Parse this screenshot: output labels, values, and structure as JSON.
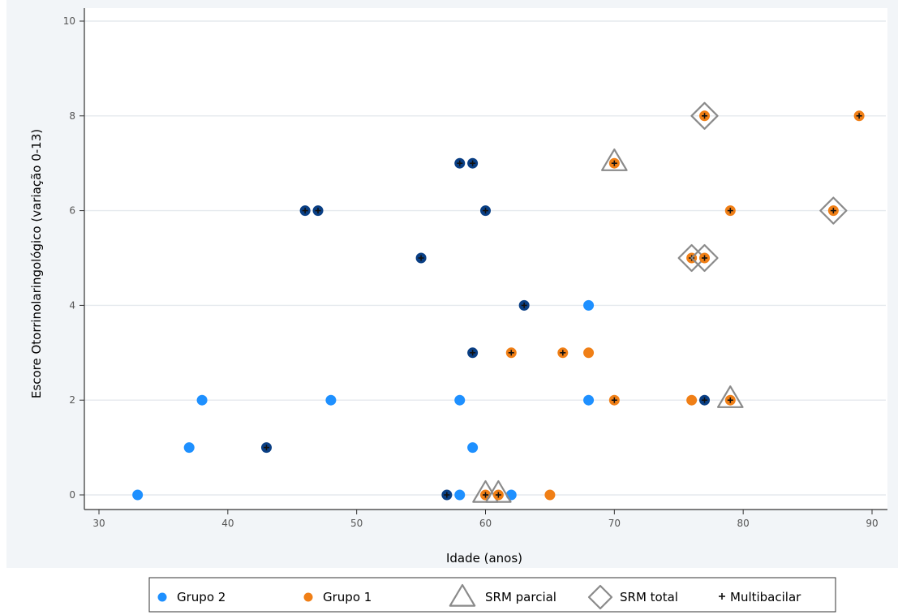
{
  "colors": {
    "background": "#ffffff",
    "plot_region": "#f2f5f8",
    "grid": "#ffffff",
    "grupo2_light": "#1e90ff",
    "grupo2_dark": "#0a3f84",
    "grupo1": "#f07f16",
    "marker_outline": "#8a8a8a",
    "multibacilar": "#111111"
  },
  "chart_data": {
    "type": "scatter",
    "xlabel": "Idade (anos)",
    "ylabel": "Escore Otorrinolaringológico (variação 0-13)",
    "xlim": [
      30,
      90
    ],
    "ylim": [
      0,
      10
    ],
    "x_ticks": [
      30,
      40,
      50,
      60,
      70,
      80,
      90
    ],
    "y_ticks": [
      0,
      2,
      4,
      6,
      8,
      10
    ],
    "grid": true,
    "legend_position": "bottom",
    "legend": [
      {
        "key": "grupo2",
        "label": "Grupo 2",
        "marker": "dot",
        "color": "#1e90ff"
      },
      {
        "key": "grupo1",
        "label": "Grupo 1",
        "marker": "dot",
        "color": "#f07f16"
      },
      {
        "key": "srm_parcial",
        "label": "SRM parcial",
        "marker": "triangle"
      },
      {
        "key": "srm_total",
        "label": "SRM total",
        "marker": "diamond"
      },
      {
        "key": "multibacilar",
        "label": "Multibacilar",
        "marker": "plus"
      }
    ],
    "series": [
      {
        "name": "Grupo 2",
        "color": "#1e90ff",
        "points": [
          {
            "x": 33,
            "y": 0
          },
          {
            "x": 37,
            "y": 1
          },
          {
            "x": 38,
            "y": 2
          },
          {
            "x": 43,
            "y": 1,
            "multibacilar": true
          },
          {
            "x": 46,
            "y": 6,
            "multibacilar": true
          },
          {
            "x": 47,
            "y": 6,
            "multibacilar": true
          },
          {
            "x": 48,
            "y": 2
          },
          {
            "x": 55,
            "y": 5,
            "multibacilar": true
          },
          {
            "x": 57,
            "y": 0,
            "multibacilar": true
          },
          {
            "x": 58,
            "y": 0
          },
          {
            "x": 58,
            "y": 2
          },
          {
            "x": 58,
            "y": 7,
            "multibacilar": true
          },
          {
            "x": 59,
            "y": 1
          },
          {
            "x": 59,
            "y": 3,
            "multibacilar": true
          },
          {
            "x": 59,
            "y": 7,
            "multibacilar": true
          },
          {
            "x": 60,
            "y": 6,
            "multibacilar": true
          },
          {
            "x": 62,
            "y": 0
          },
          {
            "x": 63,
            "y": 4,
            "multibacilar": true
          },
          {
            "x": 68,
            "y": 4
          },
          {
            "x": 68,
            "y": 2
          },
          {
            "x": 77,
            "y": 2,
            "multibacilar": true
          }
        ]
      },
      {
        "name": "Grupo 1",
        "color": "#f07f16",
        "points": [
          {
            "x": 60,
            "y": 0,
            "multibacilar": true,
            "srm": "parcial"
          },
          {
            "x": 61,
            "y": 0,
            "multibacilar": true,
            "srm": "parcial"
          },
          {
            "x": 62,
            "y": 3,
            "multibacilar": true
          },
          {
            "x": 65,
            "y": 0
          },
          {
            "x": 66,
            "y": 3,
            "multibacilar": true
          },
          {
            "x": 68,
            "y": 3
          },
          {
            "x": 70,
            "y": 2,
            "multibacilar": true
          },
          {
            "x": 70,
            "y": 7,
            "multibacilar": true,
            "srm": "parcial"
          },
          {
            "x": 76,
            "y": 2
          },
          {
            "x": 76,
            "y": 5,
            "multibacilar": true,
            "srm": "total"
          },
          {
            "x": 77,
            "y": 5,
            "multibacilar": true,
            "srm": "total"
          },
          {
            "x": 77,
            "y": 8,
            "multibacilar": true,
            "srm": "total"
          },
          {
            "x": 79,
            "y": 2,
            "multibacilar": true,
            "srm": "parcial"
          },
          {
            "x": 79,
            "y": 6,
            "multibacilar": true
          },
          {
            "x": 87,
            "y": 6,
            "multibacilar": true,
            "srm": "total"
          },
          {
            "x": 89,
            "y": 8,
            "multibacilar": true
          }
        ]
      }
    ]
  }
}
